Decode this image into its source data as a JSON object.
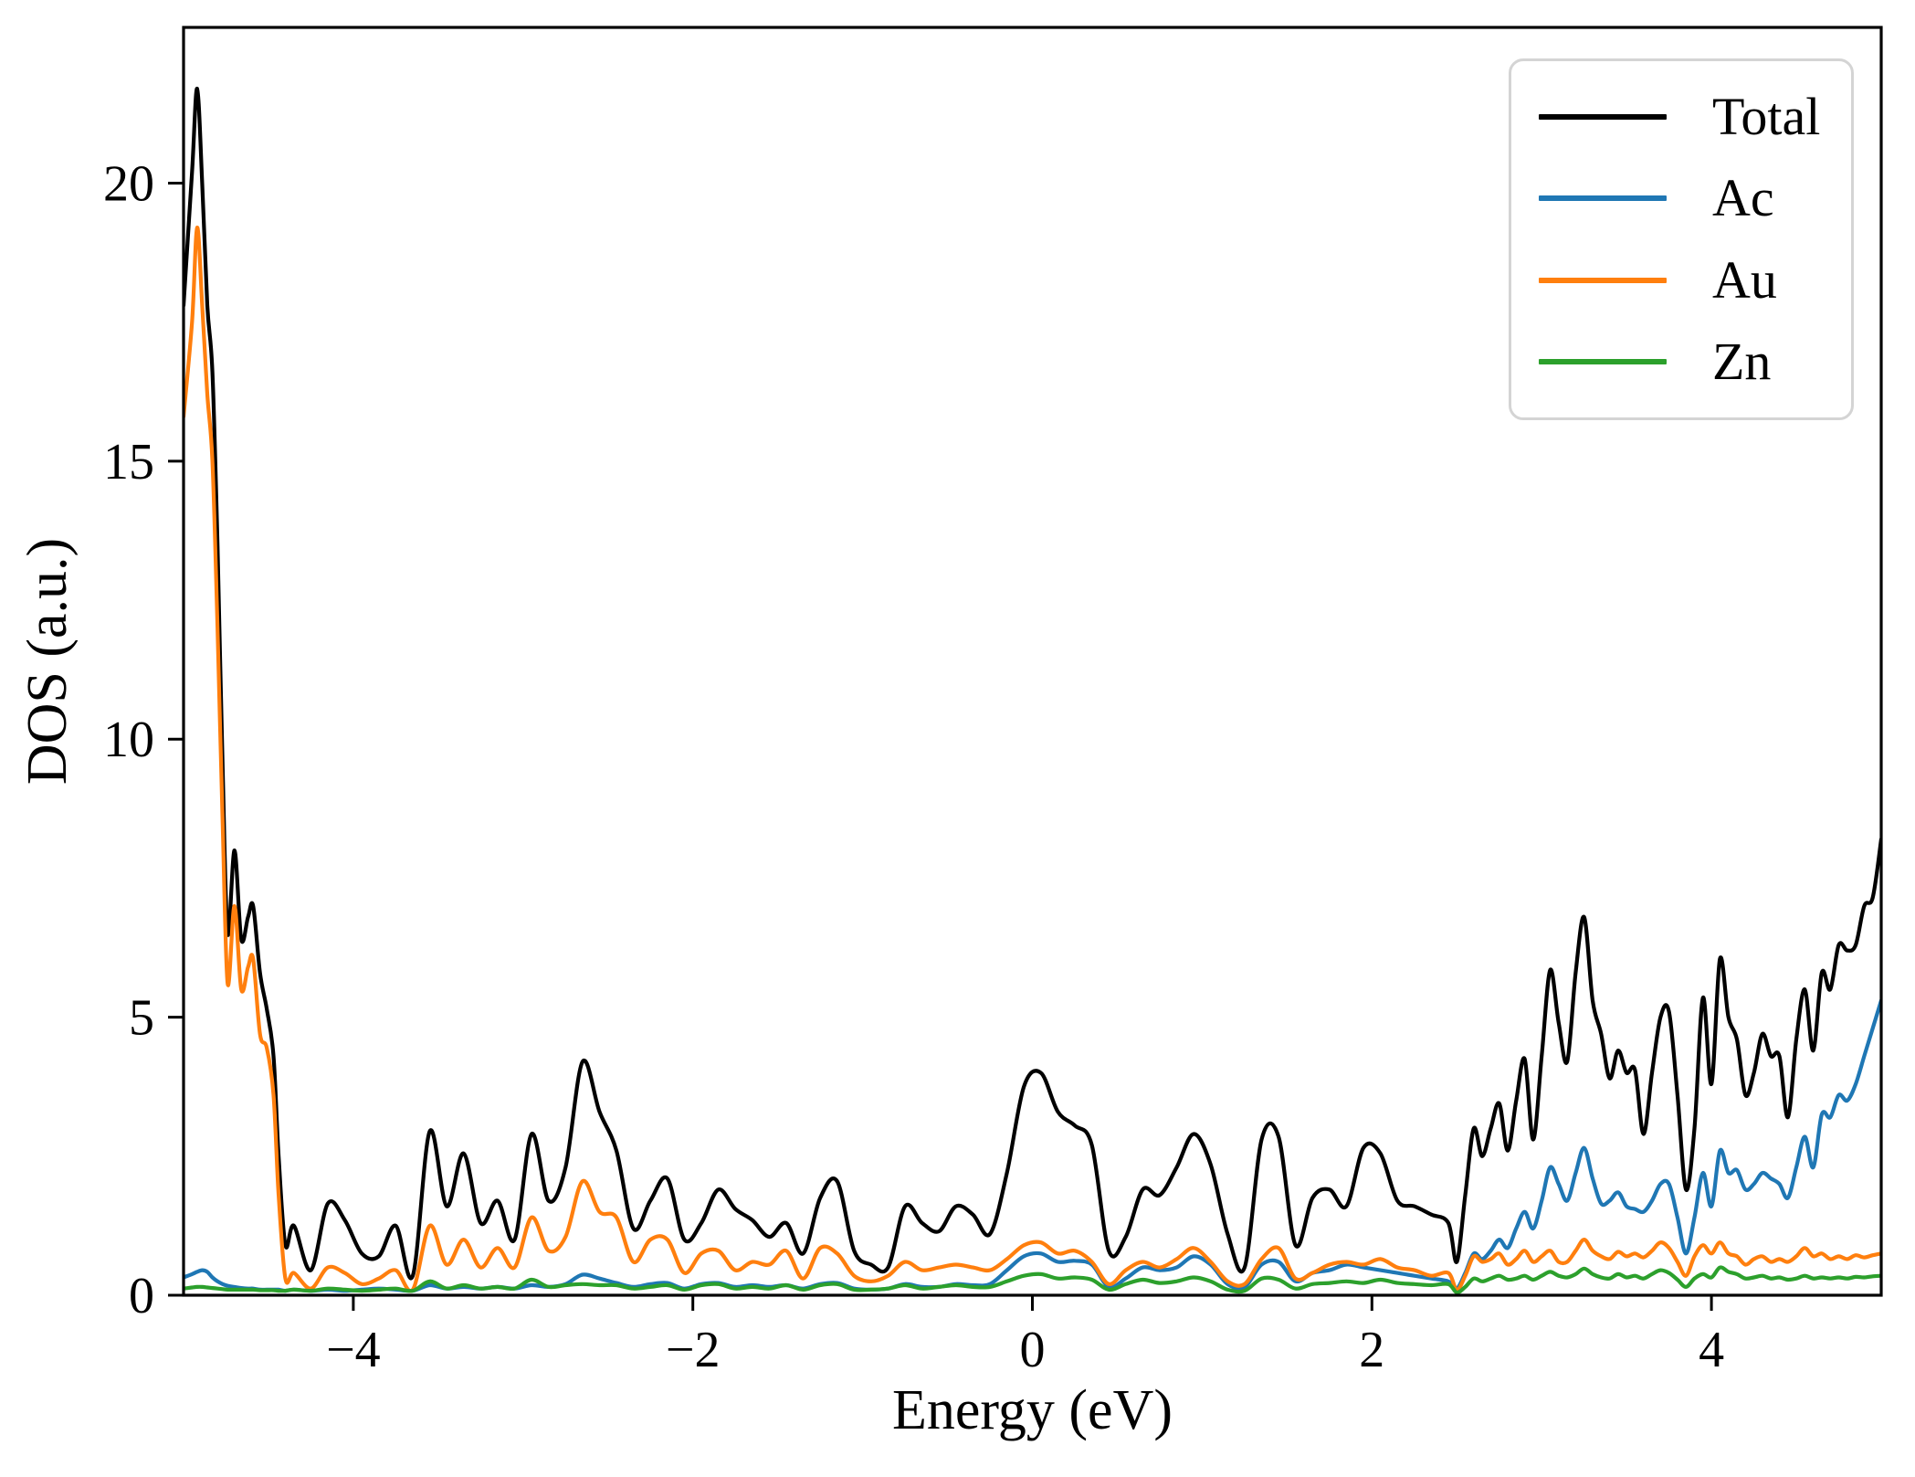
{
  "figure": {
    "background": "#ffffff",
    "plot_background": "#ffffff",
    "spine_color": "#000000"
  },
  "chart_data": {
    "type": "line",
    "title": "",
    "xlabel": "Energy (eV)",
    "ylabel": "DOS (a.u.)",
    "xlim": [
      -5,
      5
    ],
    "ylim": [
      0,
      22.8
    ],
    "grid": false,
    "legend_position": "upper right",
    "x_ticks": [
      {
        "v": -4,
        "label": "−4"
      },
      {
        "v": -2,
        "label": "−2"
      },
      {
        "v": 0,
        "label": "0"
      },
      {
        "v": 2,
        "label": "2"
      },
      {
        "v": 4,
        "label": "4"
      }
    ],
    "y_ticks": [
      {
        "v": 0,
        "label": "0"
      },
      {
        "v": 5,
        "label": "5"
      },
      {
        "v": 10,
        "label": "10"
      },
      {
        "v": 15,
        "label": "15"
      },
      {
        "v": 20,
        "label": "20"
      }
    ],
    "x": [
      -5.0,
      -4.95,
      -4.92,
      -4.89,
      -4.86,
      -4.83,
      -4.8,
      -4.77,
      -4.74,
      -4.7,
      -4.66,
      -4.62,
      -4.59,
      -4.55,
      -4.51,
      -4.47,
      -4.44,
      -4.4,
      -4.35,
      -4.25,
      -4.15,
      -4.05,
      -3.95,
      -3.85,
      -3.75,
      -3.65,
      -3.55,
      -3.45,
      -3.35,
      -3.25,
      -3.15,
      -3.05,
      -2.95,
      -2.85,
      -2.75,
      -2.65,
      -2.55,
      -2.45,
      -2.35,
      -2.25,
      -2.15,
      -2.05,
      -1.95,
      -1.85,
      -1.75,
      -1.65,
      -1.55,
      -1.45,
      -1.35,
      -1.25,
      -1.15,
      -1.05,
      -0.95,
      -0.85,
      -0.75,
      -0.65,
      -0.55,
      -0.45,
      -0.35,
      -0.25,
      -0.15,
      -0.05,
      0.05,
      0.15,
      0.25,
      0.35,
      0.45,
      0.55,
      0.65,
      0.75,
      0.85,
      0.95,
      1.05,
      1.15,
      1.25,
      1.35,
      1.45,
      1.55,
      1.65,
      1.75,
      1.85,
      1.95,
      2.05,
      2.15,
      2.25,
      2.35,
      2.45,
      2.5,
      2.55,
      2.6,
      2.65,
      2.7,
      2.75,
      2.8,
      2.85,
      2.9,
      2.95,
      3.0,
      3.05,
      3.1,
      3.15,
      3.2,
      3.25,
      3.3,
      3.35,
      3.4,
      3.45,
      3.5,
      3.55,
      3.6,
      3.65,
      3.7,
      3.75,
      3.8,
      3.85,
      3.9,
      3.95,
      4.0,
      4.05,
      4.1,
      4.15,
      4.2,
      4.25,
      4.3,
      4.35,
      4.4,
      4.45,
      4.5,
      4.55,
      4.6,
      4.65,
      4.7,
      4.75,
      4.8,
      4.85,
      4.9,
      4.95,
      5.0
    ],
    "series": [
      {
        "name": "Total",
        "color": "#000000",
        "values": [
          17.8,
          20.2,
          21.7,
          20.0,
          17.8,
          16.6,
          13.5,
          9.5,
          6.5,
          8.0,
          6.4,
          6.8,
          7.0,
          5.8,
          5.15,
          4.3,
          2.5,
          0.9,
          1.25,
          0.45,
          1.65,
          1.35,
          0.75,
          0.7,
          1.25,
          0.35,
          2.95,
          1.6,
          2.55,
          1.3,
          1.7,
          1.0,
          2.9,
          1.7,
          2.3,
          4.2,
          3.3,
          2.6,
          1.2,
          1.7,
          2.1,
          1.0,
          1.3,
          1.9,
          1.55,
          1.35,
          1.05,
          1.3,
          0.75,
          1.75,
          2.05,
          0.8,
          0.55,
          0.5,
          1.6,
          1.3,
          1.15,
          1.6,
          1.45,
          1.1,
          2.2,
          3.75,
          4.0,
          3.3,
          3.05,
          2.7,
          0.8,
          1.05,
          1.9,
          1.8,
          2.3,
          2.9,
          2.35,
          1.1,
          0.5,
          2.8,
          2.85,
          0.9,
          1.75,
          1.9,
          1.6,
          2.65,
          2.55,
          1.7,
          1.6,
          1.45,
          1.3,
          0.6,
          1.8,
          3.0,
          2.5,
          3.0,
          3.45,
          2.6,
          3.5,
          4.25,
          2.8,
          4.3,
          5.85,
          4.9,
          4.2,
          5.8,
          6.8,
          5.3,
          4.7,
          3.9,
          4.4,
          4.0,
          4.05,
          2.9,
          4.0,
          5.0,
          5.1,
          3.6,
          1.9,
          3.0,
          5.35,
          3.8,
          6.05,
          5.0,
          4.6,
          3.6,
          4.0,
          4.7,
          4.3,
          4.3,
          3.2,
          4.6,
          5.5,
          4.4,
          5.8,
          5.5,
          6.3,
          6.2,
          6.3,
          7.0,
          7.15,
          8.2
        ]
      },
      {
        "name": "Ac",
        "color": "#1f77b4",
        "values": [
          0.32,
          0.38,
          0.42,
          0.45,
          0.42,
          0.32,
          0.25,
          0.2,
          0.17,
          0.15,
          0.13,
          0.12,
          0.12,
          0.1,
          0.1,
          0.1,
          0.1,
          0.08,
          0.1,
          0.08,
          0.1,
          0.08,
          0.1,
          0.12,
          0.1,
          0.08,
          0.18,
          0.12,
          0.15,
          0.12,
          0.15,
          0.12,
          0.18,
          0.15,
          0.2,
          0.37,
          0.3,
          0.22,
          0.15,
          0.2,
          0.22,
          0.12,
          0.2,
          0.22,
          0.15,
          0.18,
          0.15,
          0.18,
          0.12,
          0.2,
          0.22,
          0.12,
          0.1,
          0.12,
          0.2,
          0.15,
          0.15,
          0.2,
          0.18,
          0.2,
          0.45,
          0.7,
          0.75,
          0.6,
          0.62,
          0.55,
          0.15,
          0.3,
          0.5,
          0.45,
          0.5,
          0.7,
          0.55,
          0.2,
          0.15,
          0.55,
          0.6,
          0.25,
          0.4,
          0.45,
          0.55,
          0.5,
          0.45,
          0.4,
          0.35,
          0.3,
          0.25,
          0.12,
          0.4,
          0.75,
          0.65,
          0.8,
          1.0,
          0.85,
          1.2,
          1.5,
          1.2,
          1.7,
          2.3,
          2.0,
          1.7,
          2.2,
          2.65,
          2.1,
          1.65,
          1.7,
          1.85,
          1.6,
          1.55,
          1.5,
          1.7,
          2.0,
          2.0,
          1.4,
          0.75,
          1.4,
          2.2,
          1.6,
          2.6,
          2.2,
          2.25,
          1.9,
          2.0,
          2.2,
          2.1,
          2.0,
          1.75,
          2.3,
          2.85,
          2.3,
          3.25,
          3.2,
          3.6,
          3.5,
          3.8,
          4.3,
          4.8,
          5.3
        ]
      },
      {
        "name": "Au",
        "color": "#ff7f0e",
        "values": [
          15.8,
          17.5,
          19.2,
          17.8,
          16.2,
          15.0,
          12.0,
          8.5,
          5.6,
          7.0,
          5.5,
          5.9,
          6.05,
          4.7,
          4.45,
          3.6,
          1.8,
          0.3,
          0.4,
          0.12,
          0.5,
          0.4,
          0.2,
          0.3,
          0.45,
          0.1,
          1.25,
          0.55,
          1.0,
          0.5,
          0.85,
          0.5,
          1.4,
          0.8,
          1.05,
          2.05,
          1.5,
          1.4,
          0.6,
          1.0,
          1.0,
          0.4,
          0.75,
          0.8,
          0.45,
          0.6,
          0.55,
          0.8,
          0.3,
          0.85,
          0.75,
          0.35,
          0.25,
          0.35,
          0.6,
          0.45,
          0.5,
          0.55,
          0.5,
          0.45,
          0.65,
          0.9,
          0.95,
          0.75,
          0.8,
          0.6,
          0.2,
          0.45,
          0.6,
          0.5,
          0.65,
          0.85,
          0.6,
          0.25,
          0.2,
          0.65,
          0.85,
          0.3,
          0.4,
          0.55,
          0.6,
          0.55,
          0.65,
          0.5,
          0.45,
          0.35,
          0.4,
          0.1,
          0.35,
          0.7,
          0.6,
          0.65,
          0.75,
          0.55,
          0.65,
          0.8,
          0.6,
          0.7,
          0.8,
          0.6,
          0.6,
          0.8,
          1.0,
          0.8,
          0.7,
          0.65,
          0.78,
          0.7,
          0.75,
          0.68,
          0.8,
          0.95,
          0.85,
          0.6,
          0.35,
          0.7,
          0.9,
          0.75,
          0.95,
          0.75,
          0.7,
          0.55,
          0.65,
          0.7,
          0.6,
          0.65,
          0.6,
          0.7,
          0.85,
          0.7,
          0.75,
          0.65,
          0.7,
          0.65,
          0.72,
          0.68,
          0.72,
          0.75
        ]
      },
      {
        "name": "Zn",
        "color": "#2ca02c",
        "values": [
          0.12,
          0.14,
          0.15,
          0.15,
          0.14,
          0.13,
          0.12,
          0.11,
          0.1,
          0.1,
          0.1,
          0.1,
          0.1,
          0.09,
          0.09,
          0.09,
          0.08,
          0.08,
          0.1,
          0.08,
          0.12,
          0.1,
          0.08,
          0.1,
          0.12,
          0.08,
          0.25,
          0.12,
          0.18,
          0.12,
          0.15,
          0.12,
          0.28,
          0.15,
          0.18,
          0.2,
          0.18,
          0.18,
          0.12,
          0.15,
          0.18,
          0.1,
          0.18,
          0.2,
          0.12,
          0.15,
          0.12,
          0.18,
          0.1,
          0.18,
          0.2,
          0.1,
          0.1,
          0.12,
          0.18,
          0.12,
          0.15,
          0.18,
          0.15,
          0.15,
          0.25,
          0.35,
          0.38,
          0.3,
          0.32,
          0.28,
          0.1,
          0.2,
          0.28,
          0.22,
          0.25,
          0.32,
          0.25,
          0.1,
          0.08,
          0.3,
          0.28,
          0.12,
          0.2,
          0.22,
          0.25,
          0.22,
          0.28,
          0.22,
          0.2,
          0.18,
          0.2,
          0.05,
          0.15,
          0.3,
          0.25,
          0.3,
          0.35,
          0.28,
          0.3,
          0.35,
          0.28,
          0.35,
          0.42,
          0.35,
          0.32,
          0.38,
          0.48,
          0.38,
          0.32,
          0.3,
          0.38,
          0.32,
          0.35,
          0.3,
          0.38,
          0.45,
          0.4,
          0.28,
          0.15,
          0.3,
          0.38,
          0.32,
          0.5,
          0.42,
          0.38,
          0.3,
          0.32,
          0.35,
          0.3,
          0.32,
          0.28,
          0.3,
          0.35,
          0.3,
          0.32,
          0.3,
          0.32,
          0.3,
          0.33,
          0.32,
          0.34,
          0.35
        ]
      }
    ]
  },
  "legend": {
    "entries": [
      {
        "label": "Total",
        "color": "#000000"
      },
      {
        "label": "Ac",
        "color": "#1f77b4"
      },
      {
        "label": "Au",
        "color": "#ff7f0e"
      },
      {
        "label": "Zn",
        "color": "#2ca02c"
      }
    ]
  }
}
